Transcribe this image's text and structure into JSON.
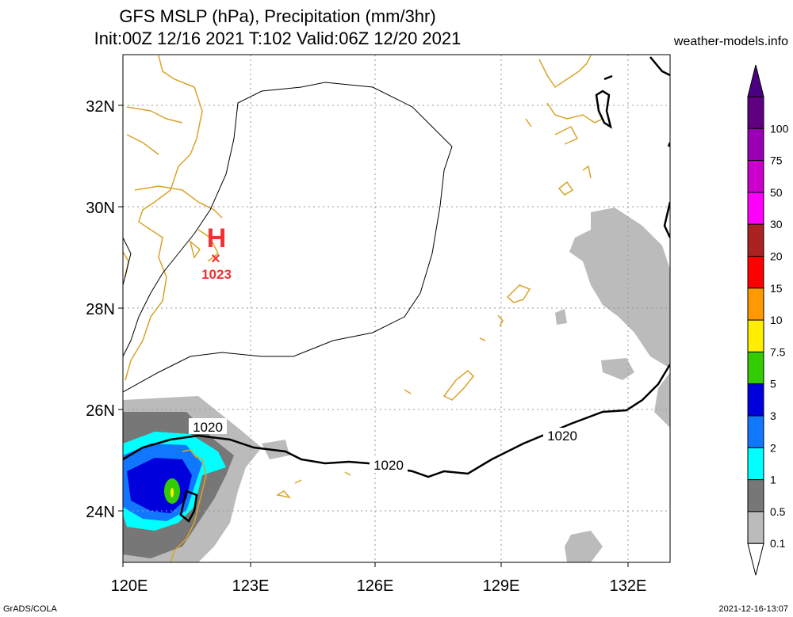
{
  "header": {
    "title_line1": "GFS MSLP (hPa), Precipitation (mm/3hr)",
    "title_line2": "Init:00Z 12/16 2021 T:102 Valid:06Z 12/20 2021",
    "site": "weather-models.info"
  },
  "footer": {
    "left": "GrADS/COLA",
    "right": "2021-12-16-13:07"
  },
  "axes": {
    "lat_labels": [
      "32N",
      "30N",
      "28N",
      "26N",
      "24N"
    ],
    "lon_labels": [
      "120E",
      "123E",
      "126E",
      "129E",
      "132E"
    ]
  },
  "pressure": {
    "high_symbol": "H",
    "high_marker": "×",
    "high_value": "1023",
    "contour_labels": [
      "1020",
      "1020",
      "1020"
    ]
  },
  "legend": {
    "labels": [
      "100",
      "75",
      "50",
      "30",
      "20",
      "15",
      "10",
      "7.5",
      "5",
      "3",
      "2",
      "1",
      "0.5",
      "0.1"
    ],
    "colors": [
      "#5e0080",
      "#9900b3",
      "#cc00cc",
      "#ff00ff",
      "#aa2222",
      "#ff0000",
      "#ff9900",
      "#ffee00",
      "#33cc00",
      "#0000dd",
      "#1177ff",
      "#00ffff",
      "#777777",
      "#bbbbbb"
    ],
    "top_color": "#4b0082",
    "bottom_color": "#ffffff"
  },
  "colors": {
    "coastline": "#d9a32a",
    "contour": "#000000",
    "high": "#ee3333",
    "grid": "#999999"
  }
}
